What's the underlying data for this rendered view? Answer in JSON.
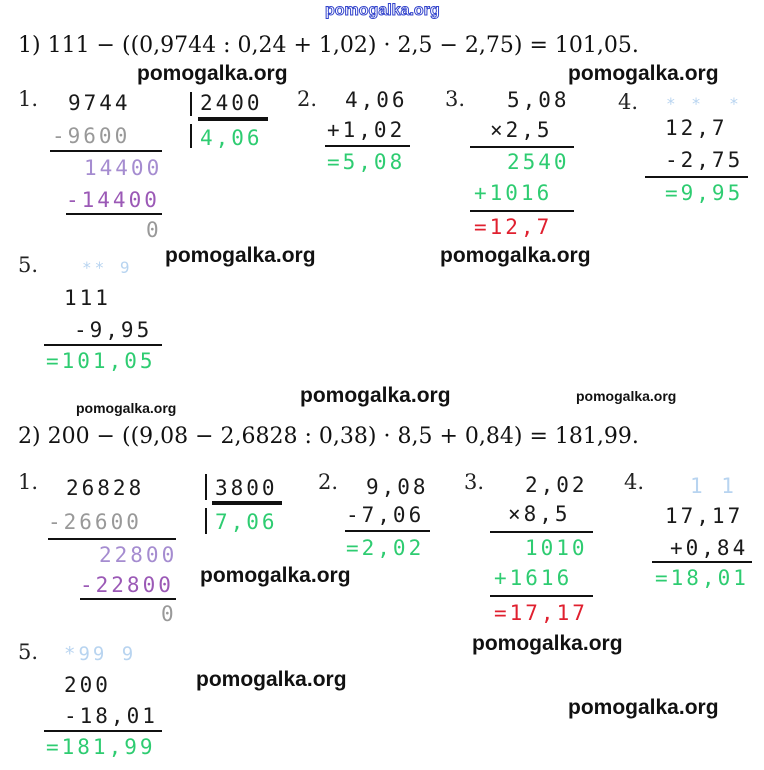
{
  "header": "pomogalka.org",
  "watermark": "pomogalka.org",
  "colors": {
    "result_green": "#2ecc71",
    "final_red": "#e0202f",
    "carry_blue": "#b8d4f0"
  },
  "problem1": {
    "equation": "1) 111 − ((0,9744 : 0,24 + 1,02) · 2,5 − 2,75) = 101,05.",
    "step1": {
      "label": "1.",
      "dividend": "9744",
      "divisor": "2400",
      "sub1": "-9600",
      "rem1": "14400",
      "sub2": "-14400",
      "rem2": "0",
      "quotient": "4,06"
    },
    "step2": {
      "label": "2.",
      "a": "4,06",
      "b": "+1,02",
      "res": "=5,08"
    },
    "step3": {
      "label": "3.",
      "a": "5,08",
      "b": "×2,5",
      "p1": "2540",
      "p2": "+1016",
      "res": "=12,7"
    },
    "step4": {
      "label": "4.",
      "carry": "* *  *",
      "a": "12,7",
      "b": "-2,75",
      "res": "=9,95"
    },
    "step5": {
      "label": "5.",
      "carry": "** 9",
      "a": "111",
      "b": "-9,95",
      "res": "=101,05"
    }
  },
  "problem2": {
    "equation": "2) 200 − ((9,08 − 2,6828 : 0,38) · 8,5 + 0,84) = 181,99.",
    "step1": {
      "label": "1.",
      "dividend": "26828",
      "divisor": "3800",
      "sub1": "-26600",
      "rem1": "22800",
      "sub2": "-22800",
      "rem2": "0",
      "quotient": "7,06"
    },
    "step2": {
      "label": "2.",
      "a": "9,08",
      "b": "-7,06",
      "res": "=2,02"
    },
    "step3": {
      "label": "3.",
      "a": "2,02",
      "b": "×8,5",
      "p1": "1010",
      "p2": "+1616",
      "res": "=17,17"
    },
    "step4": {
      "label": "4.",
      "carry": "1 1",
      "a": "17,17",
      "b": "+0,84",
      "res": "=18,01"
    },
    "step5": {
      "label": "5.",
      "carry": "*99 9",
      "a": "200",
      "b": "-18,01",
      "res": "=181,99"
    }
  }
}
